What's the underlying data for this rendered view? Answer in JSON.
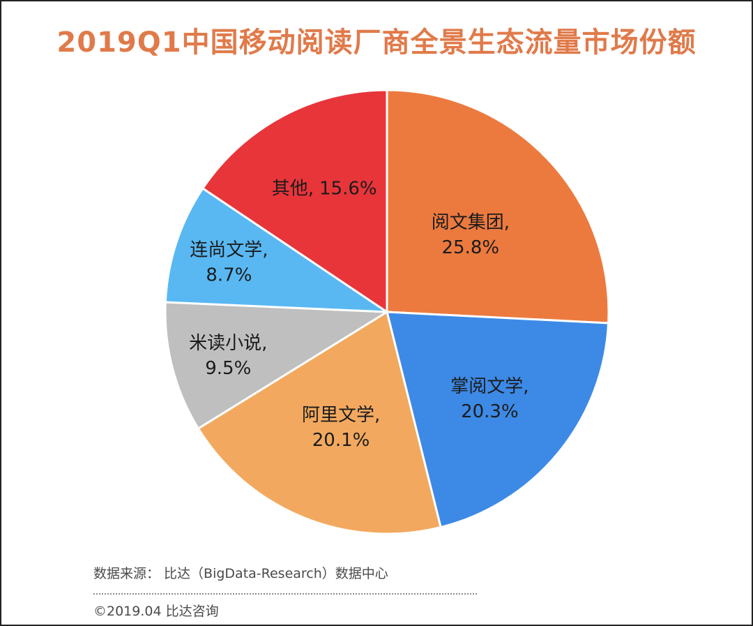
{
  "chart_data": {
    "type": "pie",
    "title": "2019Q1中国移动阅读厂商全景生态流量市场份额",
    "slices": [
      {
        "name": "阅文集团,",
        "value": 25.8,
        "label": "25.8%",
        "color": "#ec7a3f"
      },
      {
        "name": "掌阅文学,",
        "value": 20.3,
        "label": "20.3%",
        "color": "#3d8ae6"
      },
      {
        "name": "阿里文学,",
        "value": 20.1,
        "label": "20.1%",
        "color": "#f2a95f"
      },
      {
        "name": "米读小说,",
        "value": 9.5,
        "label": "9.5%",
        "color": "#bfbfbf"
      },
      {
        "name": "连尚文学,",
        "value": 8.7,
        "label": "8.7%",
        "color": "#59b8f2"
      },
      {
        "name": "其他,",
        "value": 15.6,
        "label": "15.6%",
        "color": "#e8353a"
      }
    ],
    "start": "12 o'clock",
    "direction": "clockwise"
  },
  "footer": {
    "source": "数据来源： 比达（BigData-Research）数据中心",
    "copyright": "©2019.04  比达咨询"
  }
}
